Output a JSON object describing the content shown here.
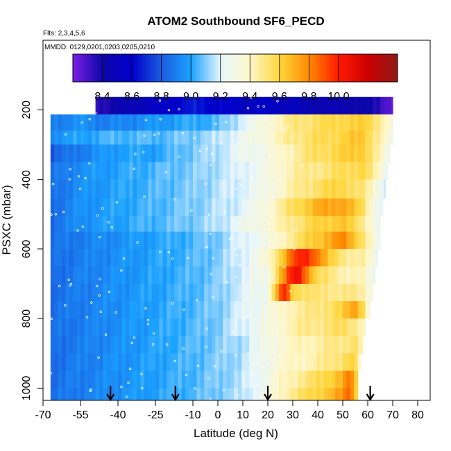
{
  "chart_data": {
    "type": "heatmap",
    "title": "ATOM2 Southbound SF6_PECD",
    "subtitle_flights": "Flts: 2,3,4,5,6",
    "subtitle_dates": "MMDD: 0129,0201,0203,0205,0210",
    "xlabel": "Latitude (deg N)",
    "ylabel": "PSXC (mbar)",
    "xlim": [
      -70,
      85
    ],
    "ylim": [
      1035,
      0
    ],
    "x_ticks": [
      -70,
      -55,
      -40,
      -25,
      -10,
      0,
      10,
      20,
      30,
      40,
      50,
      60,
      70,
      80
    ],
    "y_ticks": [
      200,
      400,
      600,
      800,
      1000
    ],
    "colorbar": {
      "min": 8.2,
      "max": 10.4,
      "tick_values": [
        8.4,
        8.6,
        8.8,
        9.0,
        9.2,
        9.4,
        9.6,
        9.8,
        10.0
      ],
      "tick_labels": [
        "8.4",
        "8.6",
        "8.8",
        "9.0",
        "9.2",
        "9.4",
        "9.6",
        "9.8",
        "10.0"
      ],
      "stops": [
        "#7a1fe6",
        "#0d06a8",
        "#0000cc",
        "#1a5be0",
        "#1ba2ff",
        "#e6f6ff",
        "#fff7c9",
        "#ffd63d",
        "#ff8a00",
        "#ff1a00",
        "#cc0000",
        "#8e1a17"
      ]
    },
    "bands": [
      {
        "p_top": 163,
        "p_bot": 213,
        "x0": -49,
        "x1": 70,
        "anchors": [
          [
            -49,
            8.35
          ],
          [
            -30,
            8.5
          ],
          [
            -10,
            8.65
          ],
          [
            0,
            8.6
          ],
          [
            10,
            8.55
          ],
          [
            20,
            8.55
          ],
          [
            30,
            8.5
          ],
          [
            40,
            8.45
          ],
          [
            50,
            8.45
          ],
          [
            60,
            8.4
          ],
          [
            65,
            8.35
          ],
          [
            70,
            8.25
          ]
        ]
      },
      {
        "p_top": 213,
        "p_bot": 260,
        "x0": -67,
        "x1": 70,
        "anchors": [
          [
            -67,
            8.9
          ],
          [
            -55,
            8.95
          ],
          [
            -45,
            8.9
          ],
          [
            -30,
            8.95
          ],
          [
            -15,
            9.0
          ],
          [
            0,
            9.05
          ],
          [
            10,
            9.2
          ],
          [
            20,
            9.35
          ],
          [
            30,
            9.5
          ],
          [
            40,
            9.55
          ],
          [
            50,
            9.6
          ],
          [
            60,
            9.6
          ],
          [
            65,
            9.5
          ],
          [
            70,
            9.3
          ]
        ]
      },
      {
        "p_top": 260,
        "p_bot": 300,
        "x0": -67,
        "x1": 70,
        "anchors": [
          [
            -67,
            8.95
          ],
          [
            -55,
            9.0
          ],
          [
            -40,
            9.05
          ],
          [
            -25,
            9.05
          ],
          [
            -10,
            9.1
          ],
          [
            0,
            9.15
          ],
          [
            10,
            9.25
          ],
          [
            20,
            9.35
          ],
          [
            30,
            9.5
          ],
          [
            40,
            9.55
          ],
          [
            50,
            9.6
          ],
          [
            58,
            9.65
          ],
          [
            65,
            9.45
          ],
          [
            70,
            9.25
          ]
        ]
      },
      {
        "p_top": 300,
        "p_bot": 350,
        "x0": -67,
        "x1": 69,
        "anchors": [
          [
            -67,
            8.8
          ],
          [
            -55,
            8.9
          ],
          [
            -40,
            9.0
          ],
          [
            -25,
            9.0
          ],
          [
            -10,
            9.1
          ],
          [
            0,
            9.15
          ],
          [
            10,
            9.25
          ],
          [
            20,
            9.3
          ],
          [
            30,
            9.45
          ],
          [
            40,
            9.55
          ],
          [
            50,
            9.6
          ],
          [
            58,
            9.65
          ],
          [
            65,
            9.4
          ],
          [
            69,
            9.25
          ]
        ]
      },
      {
        "p_top": 350,
        "p_bot": 400,
        "x0": -67,
        "x1": 68,
        "anchors": [
          [
            -67,
            8.85
          ],
          [
            -55,
            8.95
          ],
          [
            -40,
            9.0
          ],
          [
            -25,
            9.05
          ],
          [
            -10,
            9.1
          ],
          [
            0,
            9.15
          ],
          [
            10,
            9.2
          ],
          [
            20,
            9.3
          ],
          [
            30,
            9.45
          ],
          [
            40,
            9.5
          ],
          [
            50,
            9.55
          ],
          [
            58,
            9.6
          ],
          [
            64,
            9.4
          ],
          [
            68,
            9.25
          ]
        ]
      },
      {
        "p_top": 400,
        "p_bot": 455,
        "x0": -67,
        "x1": 67,
        "anchors": [
          [
            -67,
            8.85
          ],
          [
            -55,
            8.95
          ],
          [
            -40,
            9.0
          ],
          [
            -25,
            9.05
          ],
          [
            -10,
            9.1
          ],
          [
            0,
            9.15
          ],
          [
            10,
            9.2
          ],
          [
            20,
            9.3
          ],
          [
            30,
            9.45
          ],
          [
            40,
            9.55
          ],
          [
            50,
            9.6
          ],
          [
            58,
            9.5
          ],
          [
            63,
            9.35
          ],
          [
            67,
            9.2
          ]
        ]
      },
      {
        "p_top": 455,
        "p_bot": 505,
        "x0": -67,
        "x1": 66,
        "anchors": [
          [
            -67,
            8.85
          ],
          [
            -55,
            8.95
          ],
          [
            -40,
            9.0
          ],
          [
            -25,
            9.05
          ],
          [
            -10,
            9.1
          ],
          [
            0,
            9.15
          ],
          [
            10,
            9.2
          ],
          [
            20,
            9.35
          ],
          [
            30,
            9.55
          ],
          [
            40,
            9.7
          ],
          [
            50,
            9.75
          ],
          [
            58,
            9.55
          ],
          [
            62,
            9.35
          ],
          [
            66,
            9.2
          ]
        ]
      },
      {
        "p_top": 505,
        "p_bot": 550,
        "x0": -67,
        "x1": 65,
        "anchors": [
          [
            -67,
            8.85
          ],
          [
            -55,
            8.95
          ],
          [
            -40,
            9.0
          ],
          [
            -25,
            9.05
          ],
          [
            -10,
            9.1
          ],
          [
            0,
            9.15
          ],
          [
            10,
            9.25
          ],
          [
            20,
            9.35
          ],
          [
            30,
            9.5
          ],
          [
            40,
            9.6
          ],
          [
            50,
            9.65
          ],
          [
            58,
            9.5
          ],
          [
            62,
            9.35
          ],
          [
            65,
            9.2
          ]
        ]
      },
      {
        "p_top": 550,
        "p_bot": 600,
        "x0": -67,
        "x1": 65,
        "anchors": [
          [
            -67,
            8.85
          ],
          [
            -55,
            8.9
          ],
          [
            -40,
            8.95
          ],
          [
            -25,
            9.0
          ],
          [
            -10,
            9.05
          ],
          [
            0,
            9.1
          ],
          [
            10,
            9.2
          ],
          [
            20,
            9.3
          ],
          [
            30,
            9.5
          ],
          [
            40,
            9.65
          ],
          [
            50,
            9.8
          ],
          [
            58,
            9.55
          ],
          [
            62,
            9.35
          ],
          [
            65,
            9.2
          ]
        ]
      },
      {
        "p_top": 600,
        "p_bot": 650,
        "x0": -67,
        "x1": 64,
        "anchors": [
          [
            -67,
            8.85
          ],
          [
            -55,
            8.9
          ],
          [
            -40,
            8.95
          ],
          [
            -25,
            9.0
          ],
          [
            -10,
            9.05
          ],
          [
            0,
            9.1
          ],
          [
            10,
            9.2
          ],
          [
            20,
            9.35
          ],
          [
            25,
            9.6
          ],
          [
            30,
            9.9
          ],
          [
            35,
            10.0
          ],
          [
            40,
            9.85
          ],
          [
            45,
            9.6
          ],
          [
            50,
            9.5
          ],
          [
            58,
            9.45
          ],
          [
            64,
            9.25
          ]
        ]
      },
      {
        "p_top": 650,
        "p_bot": 700,
        "x0": -67,
        "x1": 63,
        "anchors": [
          [
            -67,
            8.85
          ],
          [
            -55,
            8.9
          ],
          [
            -40,
            8.95
          ],
          [
            -25,
            9.0
          ],
          [
            -10,
            9.05
          ],
          [
            0,
            9.1
          ],
          [
            10,
            9.2
          ],
          [
            20,
            9.3
          ],
          [
            24,
            9.6
          ],
          [
            28,
            9.9
          ],
          [
            32,
            10.1
          ],
          [
            36,
            9.8
          ],
          [
            40,
            9.55
          ],
          [
            50,
            9.45
          ],
          [
            58,
            9.4
          ],
          [
            63,
            9.25
          ]
        ]
      },
      {
        "p_top": 700,
        "p_bot": 750,
        "x0": -67,
        "x1": 62,
        "anchors": [
          [
            -67,
            8.85
          ],
          [
            -55,
            8.9
          ],
          [
            -40,
            8.95
          ],
          [
            -25,
            9.0
          ],
          [
            -10,
            9.05
          ],
          [
            0,
            9.1
          ],
          [
            10,
            9.2
          ],
          [
            20,
            9.3
          ],
          [
            25,
            9.85
          ],
          [
            27,
            10.0
          ],
          [
            30,
            9.6
          ],
          [
            40,
            9.5
          ],
          [
            50,
            9.5
          ],
          [
            58,
            9.45
          ],
          [
            62,
            9.3
          ]
        ]
      },
      {
        "p_top": 750,
        "p_bot": 800,
        "x0": -67,
        "x1": 61,
        "anchors": [
          [
            -67,
            8.85
          ],
          [
            -55,
            8.9
          ],
          [
            -40,
            8.95
          ],
          [
            -25,
            9.0
          ],
          [
            -10,
            9.05
          ],
          [
            0,
            9.1
          ],
          [
            10,
            9.2
          ],
          [
            20,
            9.3
          ],
          [
            30,
            9.45
          ],
          [
            40,
            9.5
          ],
          [
            50,
            9.6
          ],
          [
            55,
            9.75
          ],
          [
            58,
            9.6
          ],
          [
            61,
            9.3
          ]
        ]
      },
      {
        "p_top": 800,
        "p_bot": 850,
        "x0": -67,
        "x1": 59,
        "anchors": [
          [
            -67,
            8.85
          ],
          [
            -55,
            8.9
          ],
          [
            -40,
            8.95
          ],
          [
            -25,
            9.0
          ],
          [
            -10,
            9.05
          ],
          [
            0,
            9.1
          ],
          [
            10,
            9.2
          ],
          [
            20,
            9.3
          ],
          [
            30,
            9.45
          ],
          [
            40,
            9.5
          ],
          [
            50,
            9.55
          ],
          [
            56,
            9.5
          ],
          [
            59,
            9.35
          ]
        ]
      },
      {
        "p_top": 850,
        "p_bot": 900,
        "x0": -67,
        "x1": 58,
        "anchors": [
          [
            -67,
            8.85
          ],
          [
            -55,
            8.9
          ],
          [
            -40,
            8.95
          ],
          [
            -25,
            9.0
          ],
          [
            -10,
            9.05
          ],
          [
            0,
            9.1
          ],
          [
            10,
            9.15
          ],
          [
            20,
            9.3
          ],
          [
            30,
            9.4
          ],
          [
            40,
            9.45
          ],
          [
            50,
            9.5
          ],
          [
            55,
            9.55
          ],
          [
            58,
            9.4
          ]
        ]
      },
      {
        "p_top": 900,
        "p_bot": 950,
        "x0": -67,
        "x1": 57,
        "anchors": [
          [
            -67,
            8.85
          ],
          [
            -55,
            8.9
          ],
          [
            -40,
            8.95
          ],
          [
            -25,
            9.0
          ],
          [
            -10,
            9.05
          ],
          [
            0,
            9.1
          ],
          [
            10,
            9.15
          ],
          [
            20,
            9.3
          ],
          [
            30,
            9.4
          ],
          [
            40,
            9.45
          ],
          [
            50,
            9.55
          ],
          [
            54,
            9.6
          ],
          [
            57,
            9.4
          ]
        ]
      },
      {
        "p_top": 950,
        "p_bot": 1000,
        "x0": -67,
        "x1": 56,
        "anchors": [
          [
            -67,
            8.85
          ],
          [
            -55,
            8.9
          ],
          [
            -40,
            8.95
          ],
          [
            -25,
            9.0
          ],
          [
            -10,
            9.05
          ],
          [
            0,
            9.1
          ],
          [
            10,
            9.15
          ],
          [
            20,
            9.3
          ],
          [
            30,
            9.45
          ],
          [
            40,
            9.55
          ],
          [
            50,
            9.7
          ],
          [
            53,
            9.85
          ],
          [
            56,
            9.5
          ]
        ]
      },
      {
        "p_top": 1000,
        "p_bot": 1035,
        "x0": -67,
        "x1": 56,
        "anchors": [
          [
            -67,
            8.85
          ],
          [
            -55,
            8.9
          ],
          [
            -40,
            8.95
          ],
          [
            -25,
            9.0
          ],
          [
            -10,
            9.05
          ],
          [
            0,
            9.1
          ],
          [
            10,
            9.15
          ],
          [
            20,
            9.3
          ],
          [
            30,
            9.5
          ],
          [
            40,
            9.6
          ],
          [
            50,
            9.75
          ],
          [
            53,
            9.9
          ],
          [
            56,
            9.5
          ]
        ]
      }
    ],
    "arrow_latitudes": [
      -43,
      -17,
      20,
      61
    ]
  }
}
